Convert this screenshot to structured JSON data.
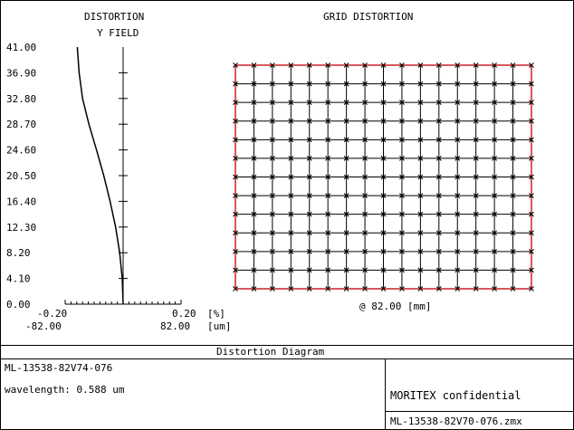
{
  "chart_data": [
    {
      "type": "line",
      "title": "DISTORTION",
      "subtitle": "Y FIELD",
      "y_ticks": [
        "41.00",
        "36.90",
        "32.80",
        "28.70",
        "24.60",
        "20.50",
        "16.40",
        "12.30",
        "8.20",
        "4.10",
        "0.00"
      ],
      "ylim": [
        0,
        41.0
      ],
      "xlim_percent": [
        -0.2,
        0.2
      ],
      "x_labels_percent": [
        "-0.20",
        "0.20"
      ],
      "x_unit_percent": "[%]",
      "x_labels_um": [
        "-82.00",
        "82.00"
      ],
      "x_unit_um": "[um]",
      "x_minor_divisions": 20,
      "series": [
        {
          "x_percent": [
            0.0,
            -0.003,
            -0.012,
            -0.026,
            -0.045,
            -0.067,
            -0.092,
            -0.118,
            -0.14,
            -0.152
          ],
          "y": [
            0.0,
            4.1,
            8.2,
            12.3,
            16.4,
            20.5,
            24.6,
            28.7,
            32.8,
            36.9
          ],
          "end_point": [
            -0.158,
            41.0
          ]
        }
      ]
    },
    {
      "type": "grid-distortion",
      "title": "GRID DISTORTION",
      "footer": "@ 82.00 [mm]",
      "grid_cells_x": 16,
      "grid_cells_y": 12
    }
  ],
  "table": {
    "diagram_name": "Distortion Diagram",
    "lens_id": "ML-13538-82V74-076",
    "wavelength": "wavelength: 0.588 um",
    "company": "MORITEX confidential",
    "file_name": "ML-13538-82V70-076.zmx"
  },
  "colors": {
    "ink": "#000000",
    "grid_border": "#c00000",
    "grid_line": "#000000"
  }
}
